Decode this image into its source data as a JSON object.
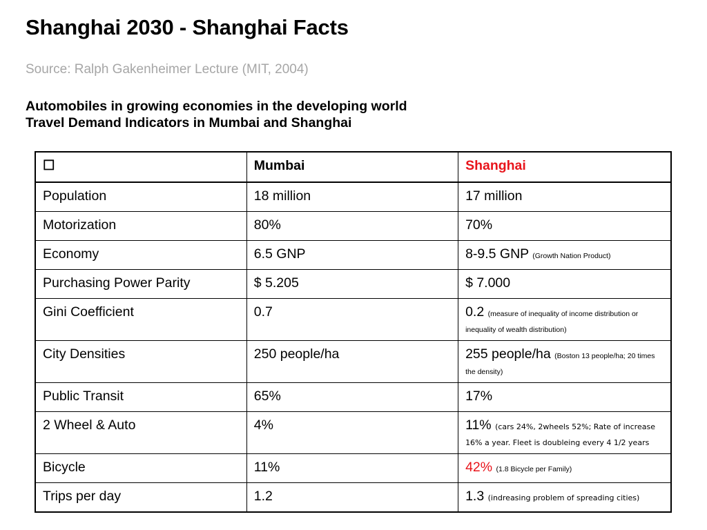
{
  "title": "Shanghai 2030 - Shanghai Facts",
  "source": "Source: Ralph Gakenheimer Lecture (MIT, 2004)",
  "subheading": {
    "line1": "Automobiles in growing economies in the developing world",
    "line2": "Travel Demand Indicators in Mumbai and Shanghai"
  },
  "table": {
    "headers": {
      "corner": "☐",
      "mumbai": "Mumbai",
      "shanghai": "Shanghai"
    },
    "rows": [
      {
        "label": "Population",
        "mumbai": "18 million",
        "shanghai": "17 million",
        "shanghai_note": ""
      },
      {
        "label": "Motorization",
        "mumbai": "80%",
        "shanghai": "70%",
        "shanghai_note": ""
      },
      {
        "label": "Economy",
        "mumbai": "6.5 GNP",
        "shanghai": "8-9.5 GNP",
        "shanghai_note": "(Growth Nation Product)"
      },
      {
        "label": "Purchasing Power Parity",
        "mumbai": "$ 5.205",
        "shanghai": "$ 7.000",
        "shanghai_note": ""
      },
      {
        "label": "Gini Coefficient",
        "mumbai": "0.7",
        "shanghai": "0.2",
        "shanghai_note": "(measure of inequality of income distribution or inequality of wealth distribution)"
      },
      {
        "label": "City Densities",
        "mumbai": "250 people/ha",
        "shanghai": "255 people/ha",
        "shanghai_note": "(Boston 13 people/ha; 20 times the density)"
      },
      {
        "label": "Public Transit",
        "mumbai": "65%",
        "shanghai": "17%",
        "shanghai_note": ""
      },
      {
        "label": "2 Wheel & Auto",
        "mumbai": "4%",
        "shanghai": "11%",
        "shanghai_note": "(cars 24%, 2wheels 52%; Rate of increase 16% a year. Fleet is doubleing every 4 1/2 years"
      },
      {
        "label": "Bicycle",
        "mumbai": "11%",
        "shanghai": "42%",
        "shanghai_note": "(1.8 Bicycle per Family)"
      },
      {
        "label": "Trips per day",
        "mumbai": "1.2",
        "shanghai": "1.3",
        "shanghai_note": "(indreasing problem of spreading cities)"
      }
    ]
  },
  "colors": {
    "accent_red": "#e8141b",
    "source_gray": "#a6a6a6"
  }
}
